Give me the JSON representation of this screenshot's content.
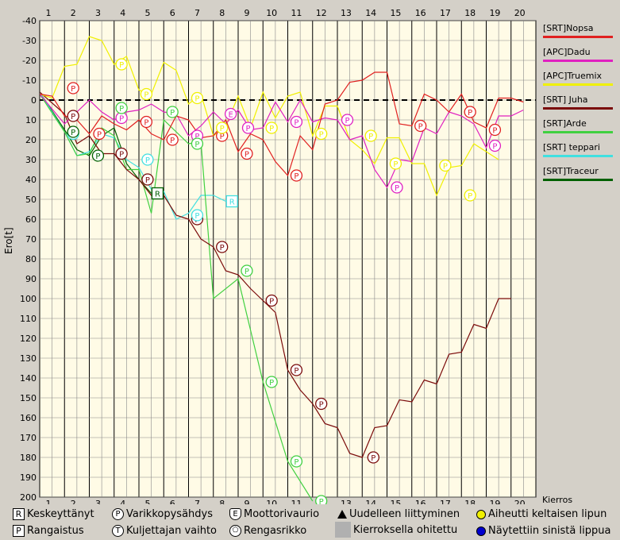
{
  "chart_data": {
    "type": "line",
    "ylabel": "Ero[t]",
    "xlabel": "Kierros",
    "x_ticks": [
      "1",
      "2",
      "3",
      "4",
      "5",
      "6",
      "7",
      "8",
      "9",
      "10",
      "11",
      "12",
      "13",
      "14",
      "15",
      "16",
      "17",
      "18",
      "19",
      "20"
    ],
    "y_ticks": [
      "-40",
      "-30",
      "-20",
      "-10",
      "0",
      "10",
      "20",
      "30",
      "40",
      "50",
      "60",
      "70",
      "80",
      "90",
      "100",
      "110",
      "120",
      "130",
      "140",
      "150",
      "160",
      "170",
      "180",
      "190",
      "200"
    ],
    "ylim": [
      -40,
      200
    ],
    "xlim": [
      0,
      20
    ],
    "y_inverted": true,
    "series": [
      {
        "name": "[SRT]Nopsa",
        "color": "#e02020",
        "values": [
          [
            0,
            -3
          ],
          [
            0.5,
            -2
          ],
          [
            1,
            8
          ],
          [
            1.5,
            10
          ],
          [
            2,
            17
          ],
          [
            2.5,
            8
          ],
          [
            3,
            12
          ],
          [
            3.5,
            15
          ],
          [
            4,
            10
          ],
          [
            4.5,
            17
          ],
          [
            5,
            20
          ],
          [
            5.5,
            8
          ],
          [
            6,
            10
          ],
          [
            6.5,
            19
          ],
          [
            7,
            18
          ],
          [
            7.5,
            10
          ],
          [
            8,
            26
          ],
          [
            8.5,
            17
          ],
          [
            9,
            20
          ],
          [
            9.5,
            31
          ],
          [
            10,
            38
          ],
          [
            10.5,
            18
          ],
          [
            11,
            25
          ],
          [
            11.5,
            2
          ],
          [
            12,
            0
          ],
          [
            12.5,
            -9
          ],
          [
            13,
            -10
          ],
          [
            13.5,
            -14
          ],
          [
            14,
            -14
          ],
          [
            14.5,
            12
          ],
          [
            15,
            13
          ],
          [
            15.5,
            -3
          ],
          [
            16,
            0
          ],
          [
            16.5,
            6
          ],
          [
            17,
            -3
          ],
          [
            17.5,
            11
          ],
          [
            18,
            14
          ],
          [
            18.5,
            -1
          ],
          [
            19,
            -1
          ],
          [
            19.5,
            1
          ]
        ]
      },
      {
        "name": "[APC]Dadu",
        "color": "#e020c0",
        "values": [
          [
            0,
            -3
          ],
          [
            1,
            12
          ],
          [
            2,
            0
          ],
          [
            2.5,
            6
          ],
          [
            3,
            10
          ],
          [
            3.5,
            6
          ],
          [
            4,
            5
          ],
          [
            4.5,
            2
          ],
          [
            5,
            6
          ],
          [
            5.5,
            7
          ],
          [
            6,
            18
          ],
          [
            6.5,
            13
          ],
          [
            7,
            6
          ],
          [
            7.5,
            12
          ],
          [
            8,
            5
          ],
          [
            8.5,
            15
          ],
          [
            9,
            14
          ],
          [
            9.5,
            1
          ],
          [
            10,
            11
          ],
          [
            10.5,
            0
          ],
          [
            11,
            11
          ],
          [
            11.5,
            9
          ],
          [
            12,
            10
          ],
          [
            12.5,
            20
          ],
          [
            13,
            18
          ],
          [
            13.5,
            35
          ],
          [
            14,
            44
          ],
          [
            14.5,
            30
          ],
          [
            15,
            31
          ],
          [
            15.5,
            14
          ],
          [
            16,
            17
          ],
          [
            16.5,
            6
          ],
          [
            17,
            8
          ],
          [
            17.5,
            12
          ],
          [
            18,
            24
          ],
          [
            18.5,
            8
          ],
          [
            19,
            8
          ],
          [
            19.5,
            5
          ]
        ]
      },
      {
        "name": "[APC]Truemix",
        "color": "#f0f000",
        "values": [
          [
            0,
            -3
          ],
          [
            0.5,
            -1
          ],
          [
            1,
            -17
          ],
          [
            1.5,
            -18
          ],
          [
            2,
            -32
          ],
          [
            2.5,
            -30
          ],
          [
            3,
            -18
          ],
          [
            3.5,
            -22
          ],
          [
            4,
            -5
          ],
          [
            4.5,
            -3
          ],
          [
            5,
            -19
          ],
          [
            5.5,
            -15
          ],
          [
            6,
            2
          ],
          [
            6.5,
            -3
          ],
          [
            7,
            18
          ],
          [
            7.5,
            13
          ],
          [
            8,
            -2
          ],
          [
            8.5,
            14
          ],
          [
            9,
            -4
          ],
          [
            9.5,
            9
          ],
          [
            10,
            -2
          ],
          [
            10.5,
            -4
          ],
          [
            11,
            18
          ],
          [
            11.5,
            3
          ],
          [
            12,
            3
          ],
          [
            12.5,
            20
          ],
          [
            13,
            25
          ],
          [
            13.5,
            32
          ],
          [
            14,
            19
          ],
          [
            14.5,
            19
          ],
          [
            15,
            32
          ],
          [
            15.5,
            32
          ],
          [
            16,
            48
          ],
          [
            16.5,
            34
          ],
          [
            17,
            33
          ],
          [
            17.5,
            22
          ],
          [
            18,
            26
          ],
          [
            18.5,
            30
          ]
        ]
      },
      {
        "name": "[SRT] Juha",
        "color": "#7a0a0a",
        "values": [
          [
            0,
            -4
          ],
          [
            1,
            7
          ],
          [
            1.5,
            22
          ],
          [
            2,
            18
          ],
          [
            2.5,
            27
          ],
          [
            3,
            27
          ],
          [
            3.5,
            35
          ],
          [
            4,
            40
          ],
          [
            4.5,
            48
          ],
          [
            5,
            48
          ],
          [
            5.5,
            58
          ],
          [
            6,
            60
          ],
          [
            6.5,
            70
          ],
          [
            7,
            74
          ],
          [
            7.5,
            86
          ],
          [
            8,
            88
          ],
          [
            8.5,
            95
          ],
          [
            9,
            101
          ],
          [
            9.5,
            107
          ],
          [
            10,
            136
          ],
          [
            10.5,
            146
          ],
          [
            11,
            153
          ],
          [
            11.5,
            163
          ],
          [
            12,
            165
          ],
          [
            12.5,
            178
          ],
          [
            13,
            180
          ],
          [
            13.5,
            165
          ],
          [
            14,
            164
          ],
          [
            14.5,
            151
          ],
          [
            15,
            152
          ],
          [
            15.5,
            141
          ],
          [
            16,
            143
          ],
          [
            16.5,
            128
          ],
          [
            17,
            127
          ],
          [
            17.5,
            113
          ],
          [
            18,
            115
          ],
          [
            18.5,
            100
          ],
          [
            19,
            100
          ]
        ]
      },
      {
        "name": "[SRT]Arde",
        "color": "#40d040",
        "values": [
          [
            0,
            -3
          ],
          [
            1,
            16
          ],
          [
            1.5,
            28
          ],
          [
            2,
            27
          ],
          [
            2.5,
            14
          ],
          [
            3,
            18
          ],
          [
            3.5,
            35
          ],
          [
            4,
            35
          ],
          [
            4.5,
            57
          ],
          [
            5,
            10
          ],
          [
            6,
            22
          ],
          [
            6.5,
            21
          ],
          [
            7,
            100
          ],
          [
            8,
            90
          ],
          [
            9,
            142
          ],
          [
            10,
            182
          ],
          [
            11,
            202
          ]
        ]
      },
      {
        "name": "[SRT] teppari",
        "color": "#40e0e0",
        "values": [
          [
            0,
            -4
          ],
          [
            1,
            16
          ],
          [
            1.5,
            28
          ],
          [
            2,
            26
          ],
          [
            2.5,
            17
          ],
          [
            3,
            19
          ],
          [
            3.5,
            30
          ],
          [
            4,
            34
          ],
          [
            4.5,
            45
          ],
          [
            5,
            46
          ],
          [
            5.5,
            60
          ],
          [
            6,
            57
          ],
          [
            6.5,
            48
          ],
          [
            7,
            48
          ],
          [
            7.5,
            51
          ]
        ]
      },
      {
        "name": "[SRT]Traceur",
        "color": "#006000",
        "values": [
          [
            0,
            -4
          ],
          [
            1,
            15
          ],
          [
            1.5,
            25
          ],
          [
            2,
            28
          ],
          [
            2.5,
            18
          ],
          [
            3,
            14
          ],
          [
            3.5,
            32
          ],
          [
            4,
            40
          ],
          [
            4.5,
            47
          ]
        ]
      }
    ],
    "markers": [
      {
        "series": "[SRT]Nopsa",
        "type": "P",
        "x": 1.35,
        "y": -6
      },
      {
        "series": "[SRT]Nopsa",
        "type": "P",
        "x": 2.4,
        "y": 17
      },
      {
        "series": "[SRT]Nopsa",
        "type": "P",
        "x": 4.3,
        "y": 11
      },
      {
        "series": "[SRT]Nopsa",
        "type": "P",
        "x": 5.35,
        "y": 20
      },
      {
        "series": "[SRT]Nopsa",
        "type": "P",
        "x": 7.35,
        "y": 18
      },
      {
        "series": "[SRT]Nopsa",
        "type": "P",
        "x": 8.35,
        "y": 27
      },
      {
        "series": "[SRT]Nopsa",
        "type": "P",
        "x": 10.35,
        "y": 38
      },
      {
        "series": "[SRT]Nopsa",
        "type": "P",
        "x": 15.35,
        "y": 13
      },
      {
        "series": "[SRT]Nopsa",
        "type": "P",
        "x": 17.35,
        "y": 6
      },
      {
        "series": "[SRT]Nopsa",
        "type": "P",
        "x": 18.35,
        "y": 15
      },
      {
        "series": "[APC]Dadu",
        "type": "P",
        "x": 3.3,
        "y": 9
      },
      {
        "series": "[APC]Dadu",
        "type": "P",
        "x": 6.35,
        "y": 18
      },
      {
        "series": "[APC]Dadu",
        "type": "P",
        "x": 8.4,
        "y": 14
      },
      {
        "series": "[APC]Dadu",
        "type": "P",
        "x": 10.35,
        "y": 11
      },
      {
        "series": "[APC]Dadu",
        "type": "P",
        "x": 12.4,
        "y": 10
      },
      {
        "series": "[APC]Dadu",
        "type": "P",
        "x": 14.4,
        "y": 44
      },
      {
        "series": "[APC]Dadu",
        "type": "P",
        "x": 18.35,
        "y": 23
      },
      {
        "series": "[APC]Dadu",
        "type": "E",
        "x": 7.7,
        "y": 7
      },
      {
        "series": "[APC]Truemix",
        "type": "P",
        "x": 3.3,
        "y": -18
      },
      {
        "series": "[APC]Truemix",
        "type": "P",
        "x": 4.3,
        "y": -3
      },
      {
        "series": "[APC]Truemix",
        "type": "P",
        "x": 6.35,
        "y": -1
      },
      {
        "series": "[APC]Truemix",
        "type": "P",
        "x": 7.35,
        "y": 14
      },
      {
        "series": "[APC]Truemix",
        "type": "P",
        "x": 9.35,
        "y": 14
      },
      {
        "series": "[APC]Truemix",
        "type": "P",
        "x": 11.35,
        "y": 17
      },
      {
        "series": "[APC]Truemix",
        "type": "P",
        "x": 13.35,
        "y": 18
      },
      {
        "series": "[APC]Truemix",
        "type": "P",
        "x": 14.35,
        "y": 32
      },
      {
        "series": "[APC]Truemix",
        "type": "P",
        "x": 16.35,
        "y": 33
      },
      {
        "series": "[APC]Truemix",
        "type": "P",
        "x": 17.35,
        "y": 48
      },
      {
        "series": "[SRT] Juha",
        "type": "P",
        "x": 1.35,
        "y": 8
      },
      {
        "series": "[SRT] Juha",
        "type": "P",
        "x": 3.3,
        "y": 27
      },
      {
        "series": "[SRT] Juha",
        "type": "P",
        "x": 4.35,
        "y": 40
      },
      {
        "series": "[SRT] Juha",
        "type": "P",
        "x": 6.35,
        "y": 60
      },
      {
        "series": "[SRT] Juha",
        "type": "P",
        "x": 7.35,
        "y": 74
      },
      {
        "series": "[SRT] Juha",
        "type": "P",
        "x": 9.35,
        "y": 101
      },
      {
        "series": "[SRT] Juha",
        "type": "P",
        "x": 10.35,
        "y": 136
      },
      {
        "series": "[SRT] Juha",
        "type": "P",
        "x": 11.35,
        "y": 153
      },
      {
        "series": "[SRT] Juha",
        "type": "P",
        "x": 13.45,
        "y": 180
      },
      {
        "series": "[SRT]Arde",
        "type": "P",
        "x": 3.3,
        "y": 4
      },
      {
        "series": "[SRT]Arde",
        "type": "P",
        "x": 5.35,
        "y": 6
      },
      {
        "series": "[SRT]Arde",
        "type": "P",
        "x": 6.35,
        "y": 22
      },
      {
        "series": "[SRT]Arde",
        "type": "P",
        "x": 8.35,
        "y": 86
      },
      {
        "series": "[SRT]Arde",
        "type": "P",
        "x": 9.35,
        "y": 142
      },
      {
        "series": "[SRT]Arde",
        "type": "P",
        "x": 10.35,
        "y": 182
      },
      {
        "series": "[SRT]Arde",
        "type": "P",
        "x": 11.35,
        "y": 202
      },
      {
        "series": "[SRT] teppari",
        "type": "P",
        "x": 1.35,
        "y": 17
      },
      {
        "series": "[SRT] teppari",
        "type": "P",
        "x": 4.35,
        "y": 30
      },
      {
        "series": "[SRT] teppari",
        "type": "P",
        "x": 6.35,
        "y": 58
      },
      {
        "series": "[SRT] teppari",
        "type": "R",
        "x": 7.75,
        "y": 51
      },
      {
        "series": "[SRT]Traceur",
        "type": "P",
        "x": 1.35,
        "y": 16
      },
      {
        "series": "[SRT]Traceur",
        "type": "P",
        "x": 2.35,
        "y": 28
      },
      {
        "series": "[SRT]Traceur",
        "type": "R",
        "x": 4.75,
        "y": 47
      }
    ]
  },
  "legend_key": {
    "keskeyttanyt": "Keskeyttänyt",
    "varikkopysahdys": "Varikkopysähdys",
    "moottorivaurio": "Moottorivaurio",
    "uudelleen": "Uudelleen liittyminen",
    "aiheutti": "Aiheutti keltaisen lipun",
    "rangaistus": "Rangaistus",
    "kuljettajan": "Kuljettajan vaihto",
    "rengasrikko": "Rengasrikko",
    "kierroksella": "Kierroksella ohitettu",
    "naytettiin": "Näytettiin sinistä lippua",
    "sym_r": "R",
    "sym_p": "P",
    "sym_e": "E",
    "sym_t": "T",
    "yellow_color": "#f0f000",
    "blue_color": "#0000d0"
  }
}
